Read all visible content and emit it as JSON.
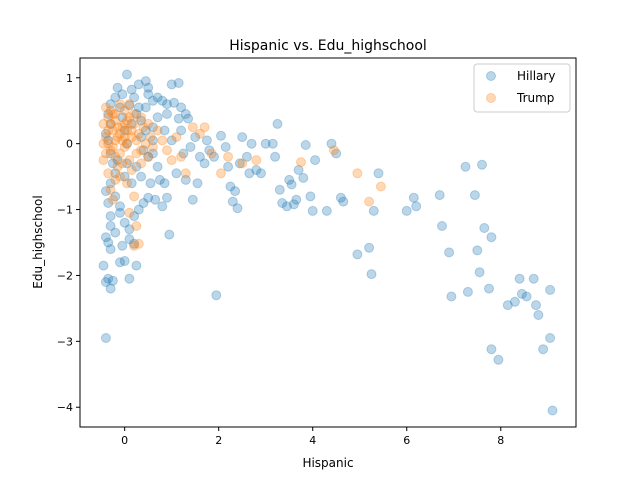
{
  "chart_data": {
    "type": "scatter",
    "title": "Hispanic vs. Edu_highschool",
    "xlabel": "Hispanic",
    "ylabel": "Edu_highschool",
    "xlim": [
      -0.95,
      9.6
    ],
    "ylim": [
      -4.3,
      1.3
    ],
    "xticks": [
      0,
      2,
      4,
      6,
      8
    ],
    "yticks": [
      1,
      0,
      -1,
      -2,
      -3,
      -4
    ],
    "xtick_labels": [
      "0",
      "2",
      "4",
      "6",
      "8"
    ],
    "ytick_labels": [
      "1",
      "0",
      "−1",
      "−2",
      "−3",
      "−4"
    ],
    "grid": false,
    "legend_position": "top-right",
    "series": [
      {
        "name": "Hillary",
        "color": "#1f77b4",
        "points": [
          [
            -0.4,
            -2.95
          ],
          [
            -0.4,
            -2.1
          ],
          [
            -0.45,
            -1.85
          ],
          [
            -0.35,
            -2.05
          ],
          [
            -0.3,
            -2.2
          ],
          [
            -0.25,
            -2.08
          ],
          [
            -0.3,
            -1.6
          ],
          [
            -0.35,
            -1.5
          ],
          [
            -0.4,
            -1.42
          ],
          [
            -0.2,
            -1.35
          ],
          [
            -0.1,
            -1.8
          ],
          [
            0.0,
            -1.78
          ],
          [
            -0.05,
            -1.55
          ],
          [
            0.1,
            -1.45
          ],
          [
            0.2,
            -1.52
          ],
          [
            0.25,
            -1.85
          ],
          [
            0.1,
            -2.05
          ],
          [
            -0.3,
            -1.1
          ],
          [
            -0.35,
            -0.9
          ],
          [
            -0.4,
            -0.72
          ],
          [
            -0.3,
            -0.6
          ],
          [
            -0.2,
            -0.8
          ],
          [
            -0.1,
            -1.05
          ],
          [
            0.0,
            -1.2
          ],
          [
            0.1,
            -1.3
          ],
          [
            0.3,
            -1.0
          ],
          [
            0.4,
            -0.9
          ],
          [
            0.5,
            -0.82
          ],
          [
            -0.25,
            -0.3
          ],
          [
            -0.3,
            -0.15
          ],
          [
            -0.35,
            0.05
          ],
          [
            -0.4,
            0.15
          ],
          [
            -0.3,
            0.3
          ],
          [
            -0.35,
            0.45
          ],
          [
            -0.3,
            0.6
          ],
          [
            -0.2,
            0.7
          ],
          [
            -0.15,
            0.85
          ],
          [
            -0.1,
            0.55
          ],
          [
            -0.05,
            0.4
          ],
          [
            0.0,
            0.2
          ],
          [
            0.05,
            0.0
          ],
          [
            0.05,
            1.05
          ],
          [
            0.15,
            0.82
          ],
          [
            0.2,
            0.7
          ],
          [
            0.3,
            0.9
          ],
          [
            0.1,
            0.58
          ],
          [
            0.25,
            0.45
          ],
          [
            0.35,
            0.35
          ],
          [
            0.45,
            0.55
          ],
          [
            0.5,
            0.75
          ],
          [
            0.45,
            0.95
          ],
          [
            0.5,
            0.85
          ],
          [
            0.6,
            0.65
          ],
          [
            0.7,
            0.7
          ],
          [
            0.8,
            0.65
          ],
          [
            0.9,
            0.6
          ],
          [
            1.0,
            0.9
          ],
          [
            1.15,
            0.92
          ],
          [
            1.05,
            0.62
          ],
          [
            1.2,
            0.55
          ],
          [
            1.3,
            0.45
          ],
          [
            1.35,
            0.38
          ],
          [
            1.15,
            0.38
          ],
          [
            0.9,
            0.45
          ],
          [
            0.7,
            0.4
          ],
          [
            0.6,
            0.25
          ],
          [
            0.45,
            0.2
          ],
          [
            0.35,
            0.1
          ],
          [
            0.4,
            -0.1
          ],
          [
            0.5,
            -0.2
          ],
          [
            0.6,
            -0.15
          ],
          [
            0.7,
            -0.35
          ],
          [
            0.75,
            -0.55
          ],
          [
            0.85,
            -0.6
          ],
          [
            0.9,
            -0.82
          ],
          [
            0.95,
            -1.38
          ],
          [
            1.1,
            -0.45
          ],
          [
            1.3,
            -0.55
          ],
          [
            1.45,
            -0.85
          ],
          [
            1.55,
            -0.6
          ],
          [
            1.6,
            -0.2
          ],
          [
            1.5,
            0.1
          ],
          [
            1.75,
            0.05
          ],
          [
            1.8,
            -0.1
          ],
          [
            1.7,
            -0.3
          ],
          [
            1.95,
            -2.3
          ],
          [
            2.05,
            0.12
          ],
          [
            2.15,
            -0.05
          ],
          [
            2.2,
            -0.35
          ],
          [
            2.25,
            -0.65
          ],
          [
            2.3,
            -0.88
          ],
          [
            2.35,
            -0.72
          ],
          [
            2.4,
            -0.98
          ],
          [
            2.45,
            -0.3
          ],
          [
            2.5,
            0.1
          ],
          [
            2.6,
            -0.2
          ],
          [
            2.7,
            0.0
          ],
          [
            2.8,
            -0.4
          ],
          [
            3.0,
            0.0
          ],
          [
            3.15,
            0.0
          ],
          [
            3.2,
            -0.2
          ],
          [
            3.25,
            0.3
          ],
          [
            3.3,
            -0.7
          ],
          [
            3.35,
            -0.9
          ],
          [
            3.45,
            -0.95
          ],
          [
            3.5,
            -0.55
          ],
          [
            3.6,
            -0.92
          ],
          [
            3.65,
            -0.85
          ],
          [
            3.7,
            -0.4
          ],
          [
            3.8,
            -0.52
          ],
          [
            3.85,
            -0.02
          ],
          [
            3.95,
            -0.8
          ],
          [
            4.0,
            -1.02
          ],
          [
            4.05,
            -0.25
          ],
          [
            4.3,
            -1.02
          ],
          [
            4.4,
            0.0
          ],
          [
            4.5,
            -0.15
          ],
          [
            4.65,
            -0.88
          ],
          [
            4.95,
            -1.68
          ],
          [
            5.2,
            -1.58
          ],
          [
            5.25,
            -1.98
          ],
          [
            5.3,
            -1.02
          ],
          [
            5.4,
            -0.45
          ],
          [
            6.0,
            -1.02
          ],
          [
            6.15,
            -0.82
          ],
          [
            6.2,
            -0.95
          ],
          [
            6.7,
            -0.78
          ],
          [
            6.75,
            -1.25
          ],
          [
            6.9,
            -1.65
          ],
          [
            6.95,
            -2.32
          ],
          [
            7.25,
            -0.35
          ],
          [
            7.3,
            -2.25
          ],
          [
            7.45,
            -0.78
          ],
          [
            7.5,
            -1.62
          ],
          [
            7.55,
            -1.95
          ],
          [
            7.6,
            -0.32
          ],
          [
            7.65,
            -1.28
          ],
          [
            7.8,
            -1.42
          ],
          [
            7.75,
            -2.2
          ],
          [
            7.8,
            -3.12
          ],
          [
            7.95,
            -3.28
          ],
          [
            8.15,
            -2.45
          ],
          [
            8.3,
            -2.4
          ],
          [
            8.4,
            -2.05
          ],
          [
            8.45,
            -2.28
          ],
          [
            8.55,
            -2.32
          ],
          [
            8.7,
            -2.05
          ],
          [
            8.8,
            -2.6
          ],
          [
            8.75,
            -2.45
          ],
          [
            8.9,
            -3.12
          ],
          [
            9.05,
            -2.95
          ],
          [
            9.05,
            -2.22
          ],
          [
            9.1,
            -4.05
          ],
          [
            -0.2,
            -0.45
          ],
          [
            -0.15,
            -0.25
          ],
          [
            0.0,
            -0.5
          ],
          [
            0.15,
            -0.6
          ],
          [
            0.25,
            -0.35
          ],
          [
            0.35,
            -0.5
          ],
          [
            0.55,
            -0.6
          ],
          [
            0.65,
            -0.85
          ],
          [
            0.8,
            -0.95
          ],
          [
            -0.1,
            -0.95
          ],
          [
            0.2,
            -1.1
          ],
          [
            -0.3,
            -1.25
          ],
          [
            0.05,
            -0.3
          ],
          [
            0.6,
            0.05
          ],
          [
            0.85,
            0.2
          ],
          [
            1.0,
            0.05
          ],
          [
            1.2,
            0.2
          ],
          [
            1.4,
            -0.05
          ],
          [
            1.25,
            -0.15
          ],
          [
            1.9,
            -0.2
          ],
          [
            2.65,
            -0.45
          ],
          [
            2.9,
            -0.45
          ],
          [
            3.55,
            -0.62
          ],
          [
            4.6,
            -0.82
          ],
          [
            0.3,
            0.55
          ],
          [
            0.15,
            0.3
          ],
          [
            -0.05,
            0.75
          ]
        ]
      },
      {
        "name": "Trump",
        "color": "#ff7f0e",
        "points": [
          [
            -0.4,
            0.55
          ],
          [
            -0.35,
            0.4
          ],
          [
            -0.3,
            0.3
          ],
          [
            -0.25,
            0.2
          ],
          [
            -0.4,
            0.1
          ],
          [
            -0.35,
            0.0
          ],
          [
            -0.3,
            -0.1
          ],
          [
            -0.25,
            0.45
          ],
          [
            -0.2,
            0.35
          ],
          [
            -0.15,
            0.25
          ],
          [
            -0.1,
            0.15
          ],
          [
            -0.05,
            0.05
          ],
          [
            0.0,
            0.3
          ],
          [
            0.05,
            0.2
          ],
          [
            0.1,
            0.4
          ],
          [
            0.15,
            0.1
          ],
          [
            -0.2,
            0.05
          ],
          [
            -0.3,
            0.5
          ],
          [
            -0.35,
            0.2
          ],
          [
            -0.25,
            -0.05
          ],
          [
            -0.2,
            -0.2
          ],
          [
            -0.15,
            -0.35
          ],
          [
            -0.1,
            -0.15
          ],
          [
            0.0,
            -0.05
          ],
          [
            0.1,
            -0.25
          ],
          [
            0.2,
            0.3
          ],
          [
            0.25,
            0.05
          ],
          [
            0.3,
            0.15
          ],
          [
            0.35,
            -0.1
          ],
          [
            0.4,
            0.25
          ],
          [
            0.45,
            0.0
          ],
          [
            0.5,
            -0.2
          ],
          [
            0.55,
            0.1
          ],
          [
            0.6,
            -0.05
          ],
          [
            -0.45,
            0.3
          ],
          [
            -0.4,
            -0.15
          ],
          [
            -0.45,
            0.0
          ],
          [
            -0.45,
            -0.25
          ],
          [
            -0.35,
            -0.45
          ],
          [
            -0.3,
            -0.7
          ],
          [
            -0.25,
            -0.85
          ],
          [
            -0.2,
            -0.55
          ],
          [
            -0.1,
            -0.5
          ],
          [
            0.05,
            -0.6
          ],
          [
            0.15,
            -0.4
          ],
          [
            0.2,
            -0.8
          ],
          [
            0.1,
            -1.05
          ],
          [
            0.25,
            -1.25
          ],
          [
            0.2,
            -1.55
          ],
          [
            0.3,
            -1.52
          ],
          [
            0.0,
            0.5
          ],
          [
            -0.1,
            0.6
          ],
          [
            0.1,
            0.6
          ],
          [
            0.2,
            0.45
          ],
          [
            0.35,
            0.4
          ],
          [
            0.5,
            0.3
          ],
          [
            0.7,
            0.2
          ],
          [
            0.8,
            0.05
          ],
          [
            0.9,
            -0.1
          ],
          [
            1.0,
            -0.25
          ],
          [
            1.1,
            0.1
          ],
          [
            1.2,
            -0.2
          ],
          [
            1.3,
            -0.45
          ],
          [
            1.45,
            0.25
          ],
          [
            1.6,
            0.15
          ],
          [
            1.7,
            0.25
          ],
          [
            1.85,
            -0.15
          ],
          [
            2.05,
            -0.45
          ],
          [
            2.2,
            -0.2
          ],
          [
            2.5,
            -0.3
          ],
          [
            2.8,
            -0.25
          ],
          [
            3.75,
            -0.28
          ],
          [
            4.45,
            -0.1
          ],
          [
            4.95,
            -0.45
          ],
          [
            5.2,
            -0.88
          ],
          [
            5.45,
            -0.65
          ],
          [
            0.0,
            0.1
          ],
          [
            -0.05,
            0.25
          ],
          [
            0.05,
            0.0
          ],
          [
            -0.15,
            0.1
          ],
          [
            0.15,
            0.2
          ],
          [
            0.25,
            -0.15
          ],
          [
            0.35,
            -0.3
          ],
          [
            -0.05,
            -0.3
          ],
          [
            0.05,
            0.35
          ],
          [
            -0.2,
            0.45
          ]
        ]
      }
    ]
  }
}
